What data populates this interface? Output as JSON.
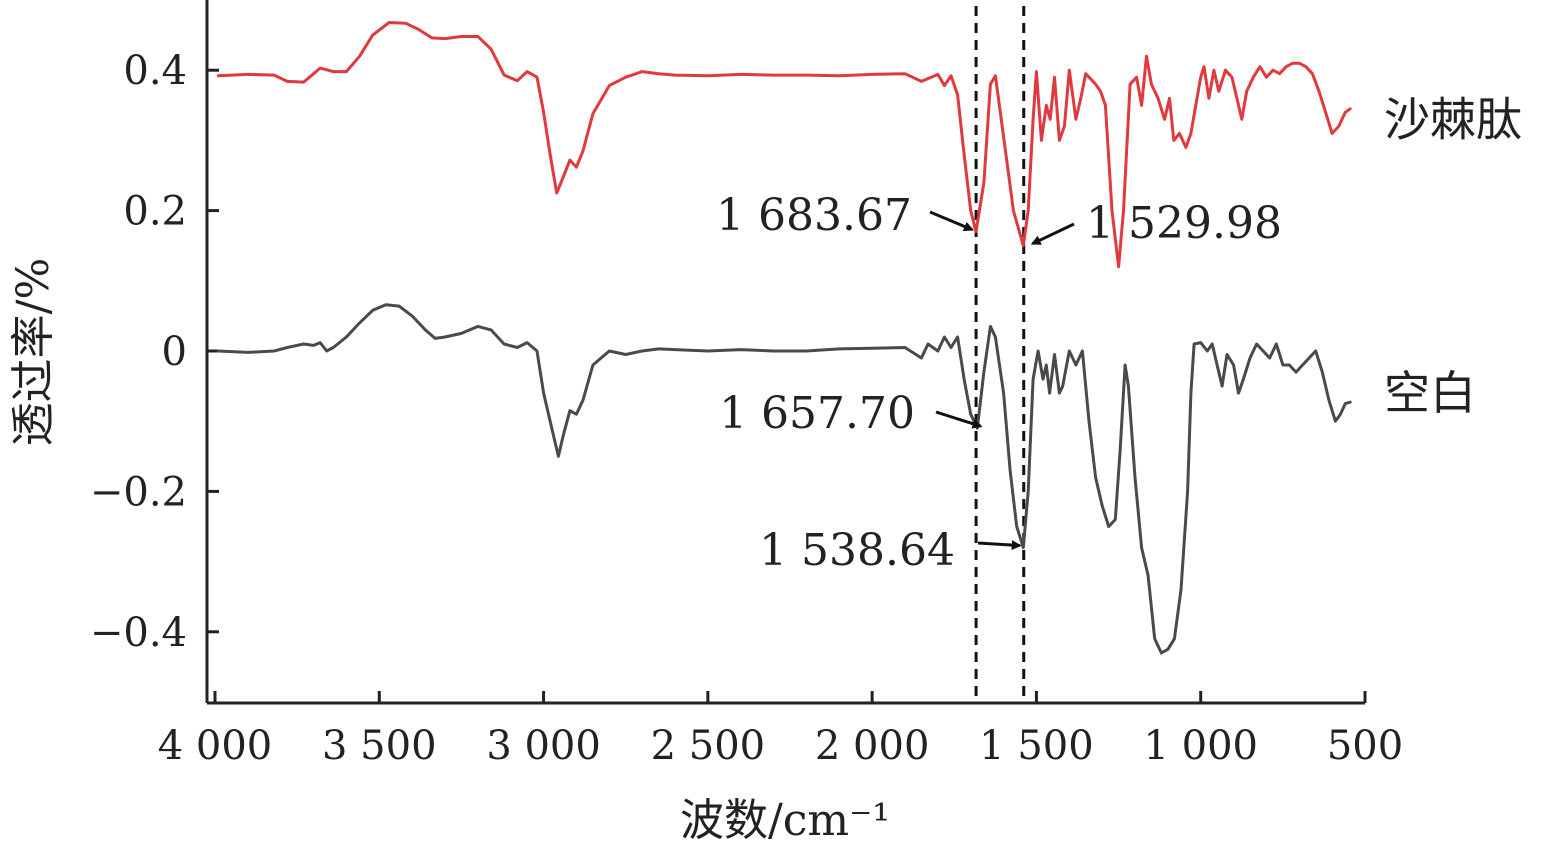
{
  "chart_data": {
    "type": "line",
    "xlabel": "波数/cm⁻¹",
    "ylabel": "透过率/%",
    "xlim": [
      4000,
      500
    ],
    "ylim": [
      -0.5,
      0.5
    ],
    "x_ticks": [
      4000,
      3500,
      3000,
      2500,
      2000,
      1500,
      1000,
      500
    ],
    "x_tick_labels": [
      "4 000",
      "3 500",
      "3 000",
      "2 500",
      "2 000",
      "1 500",
      "1 000",
      "500"
    ],
    "y_ticks": [
      0.4,
      0.2,
      0,
      -0.2,
      -0.4
    ],
    "y_tick_labels": [
      "0.4",
      "0.2",
      "0",
      "−0.2",
      "−0.4"
    ],
    "reference_lines_x": [
      1683.67,
      1538.64
    ],
    "series": [
      {
        "name": "沙棘肽",
        "color": "#e0393e",
        "points": [
          [
            3990,
            0.392
          ],
          [
            3900,
            0.394
          ],
          [
            3820,
            0.393
          ],
          [
            3780,
            0.384
          ],
          [
            3730,
            0.383
          ],
          [
            3700,
            0.395
          ],
          [
            3680,
            0.403
          ],
          [
            3640,
            0.398
          ],
          [
            3600,
            0.398
          ],
          [
            3560,
            0.42
          ],
          [
            3520,
            0.45
          ],
          [
            3470,
            0.468
          ],
          [
            3420,
            0.467
          ],
          [
            3380,
            0.458
          ],
          [
            3340,
            0.446
          ],
          [
            3300,
            0.445
          ],
          [
            3250,
            0.448
          ],
          [
            3200,
            0.448
          ],
          [
            3160,
            0.43
          ],
          [
            3120,
            0.393
          ],
          [
            3080,
            0.385
          ],
          [
            3050,
            0.398
          ],
          [
            3020,
            0.39
          ],
          [
            3000,
            0.34
          ],
          [
            2980,
            0.28
          ],
          [
            2960,
            0.225
          ],
          [
            2940,
            0.248
          ],
          [
            2920,
            0.272
          ],
          [
            2900,
            0.262
          ],
          [
            2880,
            0.285
          ],
          [
            2850,
            0.338
          ],
          [
            2800,
            0.378
          ],
          [
            2750,
            0.39
          ],
          [
            2700,
            0.398
          ],
          [
            2650,
            0.395
          ],
          [
            2600,
            0.393
          ],
          [
            2500,
            0.392
          ],
          [
            2400,
            0.394
          ],
          [
            2300,
            0.393
          ],
          [
            2200,
            0.393
          ],
          [
            2100,
            0.392
          ],
          [
            2000,
            0.394
          ],
          [
            1900,
            0.395
          ],
          [
            1850,
            0.384
          ],
          [
            1820,
            0.39
          ],
          [
            1800,
            0.394
          ],
          [
            1780,
            0.378
          ],
          [
            1760,
            0.392
          ],
          [
            1740,
            0.365
          ],
          [
            1720,
            0.28
          ],
          [
            1700,
            0.2
          ],
          [
            1684,
            0.17
          ],
          [
            1660,
            0.24
          ],
          [
            1640,
            0.38
          ],
          [
            1625,
            0.392
          ],
          [
            1610,
            0.34
          ],
          [
            1590,
            0.27
          ],
          [
            1570,
            0.2
          ],
          [
            1540,
            0.15
          ],
          [
            1525,
            0.2
          ],
          [
            1510,
            0.33
          ],
          [
            1500,
            0.398
          ],
          [
            1485,
            0.3
          ],
          [
            1470,
            0.35
          ],
          [
            1458,
            0.33
          ],
          [
            1445,
            0.39
          ],
          [
            1430,
            0.3
          ],
          [
            1415,
            0.32
          ],
          [
            1400,
            0.4
          ],
          [
            1380,
            0.33
          ],
          [
            1365,
            0.36
          ],
          [
            1350,
            0.395
          ],
          [
            1320,
            0.38
          ],
          [
            1305,
            0.37
          ],
          [
            1290,
            0.35
          ],
          [
            1270,
            0.2
          ],
          [
            1250,
            0.12
          ],
          [
            1235,
            0.2
          ],
          [
            1215,
            0.38
          ],
          [
            1195,
            0.39
          ],
          [
            1180,
            0.35
          ],
          [
            1165,
            0.42
          ],
          [
            1150,
            0.38
          ],
          [
            1130,
            0.36
          ],
          [
            1110,
            0.33
          ],
          [
            1095,
            0.36
          ],
          [
            1082,
            0.3
          ],
          [
            1065,
            0.31
          ],
          [
            1045,
            0.29
          ],
          [
            1030,
            0.31
          ],
          [
            1000,
            0.39
          ],
          [
            990,
            0.405
          ],
          [
            975,
            0.36
          ],
          [
            960,
            0.4
          ],
          [
            945,
            0.37
          ],
          [
            925,
            0.4
          ],
          [
            905,
            0.39
          ],
          [
            890,
            0.36
          ],
          [
            875,
            0.33
          ],
          [
            860,
            0.37
          ],
          [
            840,
            0.39
          ],
          [
            820,
            0.405
          ],
          [
            800,
            0.39
          ],
          [
            780,
            0.4
          ],
          [
            760,
            0.395
          ],
          [
            740,
            0.405
          ],
          [
            720,
            0.41
          ],
          [
            700,
            0.41
          ],
          [
            680,
            0.405
          ],
          [
            660,
            0.395
          ],
          [
            640,
            0.37
          ],
          [
            620,
            0.34
          ],
          [
            600,
            0.31
          ],
          [
            580,
            0.32
          ],
          [
            560,
            0.34
          ],
          [
            545,
            0.345
          ]
        ]
      },
      {
        "name": "空白",
        "color": "#4a4a4a",
        "points": [
          [
            3990,
            0.0
          ],
          [
            3900,
            -0.002
          ],
          [
            3820,
            0.0
          ],
          [
            3780,
            0.005
          ],
          [
            3730,
            0.01
          ],
          [
            3700,
            0.008
          ],
          [
            3680,
            0.012
          ],
          [
            3660,
            0.0
          ],
          [
            3640,
            0.005
          ],
          [
            3600,
            0.02
          ],
          [
            3560,
            0.04
          ],
          [
            3520,
            0.058
          ],
          [
            3480,
            0.066
          ],
          [
            3440,
            0.064
          ],
          [
            3400,
            0.05
          ],
          [
            3360,
            0.03
          ],
          [
            3330,
            0.018
          ],
          [
            3300,
            0.02
          ],
          [
            3250,
            0.025
          ],
          [
            3200,
            0.035
          ],
          [
            3160,
            0.03
          ],
          [
            3120,
            0.01
          ],
          [
            3080,
            0.005
          ],
          [
            3050,
            0.012
          ],
          [
            3020,
            0.0
          ],
          [
            3000,
            -0.06
          ],
          [
            2970,
            -0.12
          ],
          [
            2955,
            -0.15
          ],
          [
            2940,
            -0.12
          ],
          [
            2920,
            -0.085
          ],
          [
            2900,
            -0.09
          ],
          [
            2880,
            -0.07
          ],
          [
            2850,
            -0.02
          ],
          [
            2800,
            0.0
          ],
          [
            2750,
            -0.005
          ],
          [
            2700,
            0.0
          ],
          [
            2650,
            0.003
          ],
          [
            2600,
            0.002
          ],
          [
            2500,
            0.0
          ],
          [
            2400,
            0.002
          ],
          [
            2300,
            0.0
          ],
          [
            2200,
            0.0
          ],
          [
            2100,
            0.003
          ],
          [
            2000,
            0.004
          ],
          [
            1900,
            0.005
          ],
          [
            1850,
            -0.01
          ],
          [
            1830,
            0.01
          ],
          [
            1800,
            0.0
          ],
          [
            1780,
            0.02
          ],
          [
            1760,
            0.005
          ],
          [
            1740,
            0.02
          ],
          [
            1720,
            -0.04
          ],
          [
            1700,
            -0.09
          ],
          [
            1680,
            -0.11
          ],
          [
            1660,
            -0.03
          ],
          [
            1640,
            0.035
          ],
          [
            1625,
            0.02
          ],
          [
            1600,
            -0.06
          ],
          [
            1580,
            -0.17
          ],
          [
            1560,
            -0.25
          ],
          [
            1540,
            -0.28
          ],
          [
            1525,
            -0.2
          ],
          [
            1510,
            -0.04
          ],
          [
            1495,
            0.0
          ],
          [
            1480,
            -0.04
          ],
          [
            1470,
            -0.02
          ],
          [
            1460,
            -0.06
          ],
          [
            1445,
            -0.005
          ],
          [
            1430,
            -0.06
          ],
          [
            1420,
            -0.05
          ],
          [
            1400,
            0.0
          ],
          [
            1380,
            -0.02
          ],
          [
            1360,
            0.0
          ],
          [
            1340,
            -0.1
          ],
          [
            1320,
            -0.18
          ],
          [
            1300,
            -0.22
          ],
          [
            1280,
            -0.25
          ],
          [
            1260,
            -0.24
          ],
          [
            1245,
            -0.14
          ],
          [
            1230,
            -0.02
          ],
          [
            1220,
            -0.05
          ],
          [
            1200,
            -0.18
          ],
          [
            1180,
            -0.28
          ],
          [
            1160,
            -0.32
          ],
          [
            1140,
            -0.41
          ],
          [
            1120,
            -0.43
          ],
          [
            1100,
            -0.425
          ],
          [
            1080,
            -0.41
          ],
          [
            1060,
            -0.34
          ],
          [
            1040,
            -0.2
          ],
          [
            1030,
            -0.06
          ],
          [
            1020,
            0.01
          ],
          [
            1000,
            0.012
          ],
          [
            980,
            0.0
          ],
          [
            965,
            0.01
          ],
          [
            950,
            -0.02
          ],
          [
            935,
            -0.05
          ],
          [
            920,
            -0.005
          ],
          [
            900,
            -0.02
          ],
          [
            885,
            -0.06
          ],
          [
            870,
            -0.04
          ],
          [
            850,
            -0.01
          ],
          [
            830,
            0.01
          ],
          [
            810,
            0.0
          ],
          [
            790,
            -0.01
          ],
          [
            770,
            0.01
          ],
          [
            750,
            -0.02
          ],
          [
            730,
            -0.02
          ],
          [
            710,
            -0.03
          ],
          [
            690,
            -0.02
          ],
          [
            670,
            -0.01
          ],
          [
            650,
            0.0
          ],
          [
            630,
            -0.03
          ],
          [
            610,
            -0.07
          ],
          [
            590,
            -0.1
          ],
          [
            575,
            -0.09
          ],
          [
            560,
            -0.075
          ],
          [
            545,
            -0.073
          ]
        ]
      }
    ],
    "annotations": [
      {
        "text": "1 683.67",
        "x": 1683.67,
        "y": 0.17
      },
      {
        "text": "1 529.98",
        "x": 1529.98,
        "y": 0.15
      },
      {
        "text": "1 657.70",
        "x": 1657.7,
        "y": -0.11
      },
      {
        "text": "1 538.64",
        "x": 1538.64,
        "y": -0.28
      }
    ]
  }
}
